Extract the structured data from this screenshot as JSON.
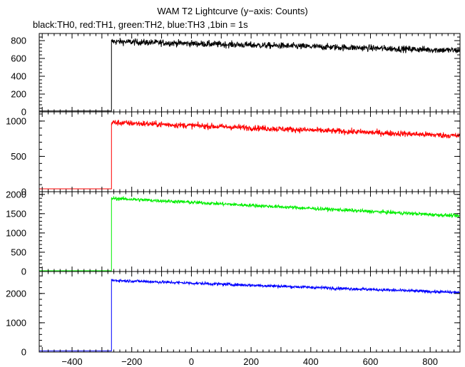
{
  "title": "WAM T2 Lightcurve (y−axis: Counts)",
  "subtitle": "black:TH0, red:TH1, green:TH2, blue:TH3 ,1bin = 1s",
  "chart_data": {
    "type": "line",
    "x_range": [
      -510,
      900
    ],
    "x_ticks": [
      -400,
      -200,
      0,
      200,
      400,
      600,
      800
    ],
    "x_tick_labels": [
      "−400",
      "−200",
      "0",
      "200",
      "400",
      "600",
      "800"
    ],
    "onset_x": -268,
    "panels": [
      {
        "name": "TH0",
        "color": "#000000",
        "ylim": [
          0,
          880
        ],
        "y_ticks": [
          0,
          200,
          400,
          600,
          800
        ],
        "y_tick_labels": [
          "0",
          "200",
          "400",
          "600",
          "800"
        ],
        "pre_level": 10,
        "start_level": 790,
        "end_level": 690,
        "noise": 35
      },
      {
        "name": "TH1",
        "color": "#ff0000",
        "ylim": [
          0,
          1130
        ],
        "y_ticks": [
          0,
          500,
          1000
        ],
        "y_tick_labels": [
          "0",
          "500",
          "1000"
        ],
        "pre_level": 40,
        "start_level": 980,
        "end_level": 790,
        "noise": 40
      },
      {
        "name": "TH2",
        "color": "#00ee00",
        "ylim": [
          0,
          2070
        ],
        "y_ticks": [
          0,
          500,
          1000,
          1500,
          2000
        ],
        "y_tick_labels": [
          "0",
          "500",
          "1000",
          "1500",
          "2000"
        ],
        "pre_level": 20,
        "start_level": 1900,
        "end_level": 1440,
        "noise": 45
      },
      {
        "name": "TH3",
        "color": "#0000ff",
        "ylim": [
          0,
          2750
        ],
        "y_ticks": [
          0,
          1000,
          2000
        ],
        "y_tick_labels": [
          "0",
          "1000",
          "2000"
        ],
        "pre_level": 40,
        "start_level": 2450,
        "end_level": 2030,
        "noise": 50
      }
    ]
  }
}
